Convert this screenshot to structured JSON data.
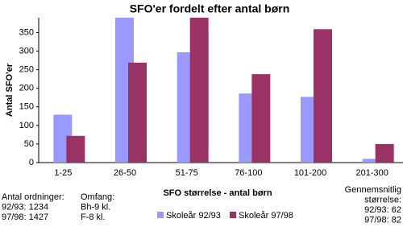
{
  "chart_data": {
    "type": "bar",
    "title": "SFO'er fordelt efter antal børn",
    "y_label": "Antal SFO'er",
    "x_label": "SFO størrelse - antal børn",
    "categories": [
      "1-25",
      "26-50",
      "51-75",
      "76-100",
      "101-200",
      "201-300"
    ],
    "series": [
      {
        "name": "Skoleår 92/93",
        "color": "#9999ff",
        "values": [
          129,
          390,
          297,
          186,
          177,
          10
        ]
      },
      {
        "name": "Skoleår 97/98",
        "color": "#993366",
        "values": [
          72,
          269,
          390,
          238,
          359,
          50
        ]
      }
    ],
    "ylim": [
      0,
      390
    ],
    "yticks": [
      0,
      50,
      100,
      150,
      200,
      250,
      300,
      350
    ],
    "grid": false,
    "annotations": [
      [
        "Antal ordninger:",
        "92/93: 1234",
        "97/98: 1427"
      ],
      [
        "Omfang:",
        "Bh-9 kl.",
        "F-8 kl."
      ],
      [
        "Gennemsnitlig",
        "størrelse:",
        "92/93: 62",
        "97/98: 82"
      ]
    ]
  }
}
